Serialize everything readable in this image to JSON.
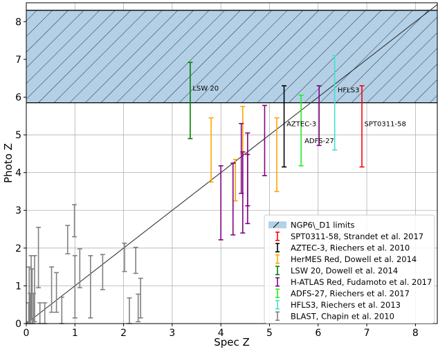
{
  "chart_data": {
    "type": "scatter",
    "xlabel": "Spec Z",
    "ylabel": "Photo Z",
    "xlim": [
      0,
      8.45
    ],
    "ylim": [
      0,
      8.5
    ],
    "xticks": [
      "0",
      "1",
      "2",
      "3",
      "4",
      "5",
      "6",
      "7",
      "8"
    ],
    "yticks": [
      "0",
      "1",
      "2",
      "3",
      "4",
      "5",
      "6",
      "7",
      "8"
    ],
    "grid": true,
    "legend_position": "lower-right",
    "limit_region": {
      "name": "NGP6\\_D1 limits",
      "y_range": [
        5.85,
        8.3
      ],
      "color": "#b4d0e6"
    },
    "one_to_one_line": true,
    "series": [
      {
        "name": "SPT0311-58, Strandet et al. 2017",
        "color": "#ff0000",
        "points": [
          {
            "x": 6.9,
            "y_low": 4.15,
            "y_high": 6.3
          }
        ]
      },
      {
        "name": "AZTEC-3, Riechers et al. 2010",
        "color": "#000000",
        "points": [
          {
            "x": 5.3,
            "y_low": 4.15,
            "y_high": 6.3
          }
        ]
      },
      {
        "name": "HerMES Red, Dowell et al. 2014",
        "color": "#ffa500",
        "points": [
          {
            "x": 3.8,
            "y_low": 3.75,
            "y_high": 5.45
          },
          {
            "x": 4.3,
            "y_low": 3.25,
            "y_high": 4.35
          },
          {
            "x": 4.45,
            "y_low": 4.5,
            "y_high": 5.75
          },
          {
            "x": 5.15,
            "y_low": 3.5,
            "y_high": 5.45
          }
        ]
      },
      {
        "name": "LSW 20, Dowell et al. 2014",
        "color": "#008000",
        "points": [
          {
            "x": 3.37,
            "y_low": 4.9,
            "y_high": 6.92
          }
        ]
      },
      {
        "name": "H-ATLAS Red, Fudamoto et al. 2017",
        "color": "#800080",
        "points": [
          {
            "x": 4.0,
            "y_low": 2.22,
            "y_high": 4.18
          },
          {
            "x": 4.25,
            "y_low": 2.35,
            "y_high": 4.25
          },
          {
            "x": 4.42,
            "y_low": 3.45,
            "y_high": 5.3
          },
          {
            "x": 4.45,
            "y_low": 2.4,
            "y_high": 4.55
          },
          {
            "x": 4.55,
            "y_low": 2.65,
            "y_high": 5.05
          },
          {
            "x": 4.55,
            "y_low": 3.12,
            "y_high": 4.48
          },
          {
            "x": 4.9,
            "y_low": 3.92,
            "y_high": 5.78
          },
          {
            "x": 6.02,
            "y_low": 4.72,
            "y_high": 6.3
          }
        ]
      },
      {
        "name": "ADFS-27, Riechers et al. 2017",
        "color": "#22ee22",
        "points": [
          {
            "x": 5.65,
            "y_low": 4.18,
            "y_high": 6.05
          }
        ]
      },
      {
        "name": "HFLS3, Riechers et al. 2013",
        "color": "#40e0d0",
        "points": [
          {
            "x": 6.34,
            "y_low": 4.6,
            "y_high": 7.1
          }
        ]
      },
      {
        "name": "BLAST, Chapin et al. 2010",
        "color": "#808080",
        "points": [
          {
            "x": 0.05,
            "y_low": 0.05,
            "y_high": 0.55
          },
          {
            "x": 0.06,
            "y_low": 0.0,
            "y_high": 1.5
          },
          {
            "x": 0.08,
            "y_low": 0.0,
            "y_high": 0.8
          },
          {
            "x": 0.1,
            "y_low": 0.1,
            "y_high": 1.8
          },
          {
            "x": 0.12,
            "y_low": 0.0,
            "y_high": 1.45
          },
          {
            "x": 0.15,
            "y_low": 0.0,
            "y_high": 0.8
          },
          {
            "x": 0.17,
            "y_low": 0.05,
            "y_high": 1.8
          },
          {
            "x": 0.25,
            "y_low": 0.95,
            "y_high": 2.55
          },
          {
            "x": 0.28,
            "y_low": 0.0,
            "y_high": 0.55
          },
          {
            "x": 0.38,
            "y_low": 0.0,
            "y_high": 0.55
          },
          {
            "x": 0.52,
            "y_low": 0.3,
            "y_high": 1.5
          },
          {
            "x": 0.62,
            "y_low": 0.3,
            "y_high": 1.35
          },
          {
            "x": 0.73,
            "y_low": 0.0,
            "y_high": 0.7
          },
          {
            "x": 0.85,
            "y_low": 1.85,
            "y_high": 2.6
          },
          {
            "x": 0.99,
            "y_low": 2.3,
            "y_high": 3.15
          },
          {
            "x": 1.0,
            "y_low": 0.15,
            "y_high": 1.8
          },
          {
            "x": 1.1,
            "y_low": 0.95,
            "y_high": 1.98
          },
          {
            "x": 1.32,
            "y_low": 0.15,
            "y_high": 1.8
          },
          {
            "x": 1.57,
            "y_low": 0.9,
            "y_high": 1.83
          },
          {
            "x": 2.02,
            "y_low": 1.38,
            "y_high": 2.13
          },
          {
            "x": 2.12,
            "y_low": 0.0,
            "y_high": 0.68
          },
          {
            "x": 2.25,
            "y_low": 1.33,
            "y_high": 2.02
          },
          {
            "x": 2.3,
            "y_low": 0.05,
            "y_high": 0.78
          },
          {
            "x": 2.35,
            "y_low": 0.15,
            "y_high": 1.2
          }
        ]
      }
    ],
    "annotations": [
      {
        "text": "LSW 20",
        "x": 3.42,
        "y": 6.25
      },
      {
        "text": "HFLS3",
        "x": 6.4,
        "y": 6.2
      },
      {
        "text": "AZTEC-3",
        "x": 5.35,
        "y": 5.3
      },
      {
        "text": "SPT0311-58",
        "x": 6.95,
        "y": 5.3
      },
      {
        "text": "ADFS-27",
        "x": 5.72,
        "y": 4.85
      }
    ]
  }
}
